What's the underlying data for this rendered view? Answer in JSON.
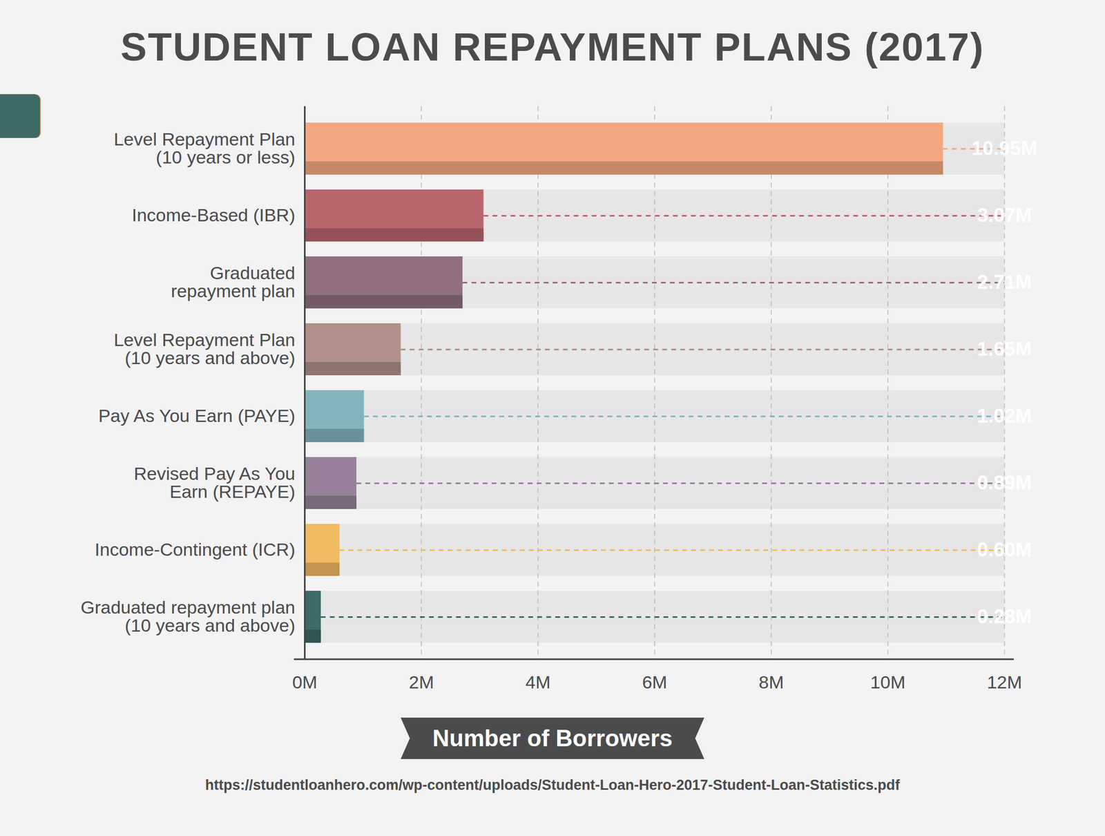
{
  "chart_data": {
    "type": "bar",
    "orientation": "horizontal",
    "title": "STUDENT LOAN REPAYMENT PLANS (2017)",
    "x_label": "Number of Borrowers",
    "caption": "https://studentloanhero.com/wp-content/uploads/Student-Loan-Hero-2017-Student-Loan-Statistics.pdf",
    "categories": [
      "Level Repayment Plan\n(10 years or less)",
      "Income-Based (IBR)",
      "Graduated\nrepayment plan",
      "Level Repayment Plan\n(10 years and above)",
      "Pay As You Earn (PAYE)",
      "Revised Pay As You\nEarn (REPAYE)",
      "Income-Contingent (ICR)",
      "Graduated repayment plan\n(10 years and above)"
    ],
    "values": [
      10.95,
      3.07,
      2.71,
      1.65,
      1.02,
      0.89,
      0.6,
      0.28
    ],
    "value_labels": [
      "10.95M",
      "3.07M",
      "2.71M",
      "1.65M",
      "1.02M",
      "0.89M",
      "0.60M",
      "0.28M"
    ],
    "colors": [
      "#f4a882",
      "#b9656d",
      "#907080",
      "#b09088",
      "#84b4bc",
      "#958298",
      "#f2b963",
      "#3d6966"
    ],
    "data_labels": true,
    "xlim": [
      0,
      12
    ],
    "xticks": [
      {
        "value": 0,
        "label": "0M"
      },
      {
        "value": 2,
        "label": "2M"
      },
      {
        "value": 4,
        "label": "4M"
      },
      {
        "value": 6,
        "label": "6M"
      },
      {
        "value": 8,
        "label": "8M"
      },
      {
        "value": 10,
        "label": "10M"
      },
      {
        "value": 12,
        "label": "12M"
      }
    ],
    "grid": true
  }
}
